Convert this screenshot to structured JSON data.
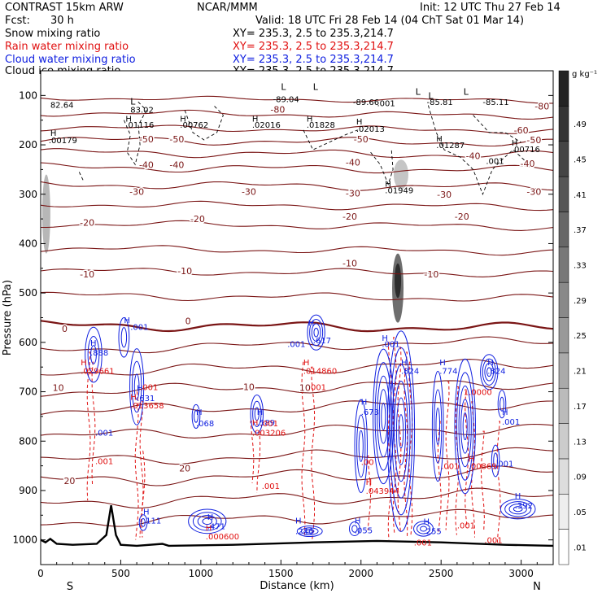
{
  "header": {
    "model": "CONTRAST 15km ARW",
    "center": "NCAR/MMM",
    "init": "Init: 12 UTC Thu 27 Feb 14",
    "fcst_label": "Fcst:",
    "fcst_value": "30 h",
    "valid": "Valid: 18 UTC Fri 28 Feb 14 (04 ChT Sat 01 Mar 14)"
  },
  "fields": [
    {
      "name": "Snow mixing ratio",
      "xy": "XY= 235.3,  2.5 to 235.3,214.7",
      "color": "#000000"
    },
    {
      "name": "Rain water mixing ratio",
      "xy": "XY= 235.3,  2.5 to 235.3,214.7",
      "color": "#e01010"
    },
    {
      "name": "Cloud water mixing ratio",
      "xy": "XY= 235.3,  2.5 to 235.3,214.7",
      "color": "#1020e0"
    },
    {
      "name": "Cloud ice mixing ratio",
      "xy": "XY= 235.3,  2.5 to 235.3,214.7",
      "color": "#000000"
    }
  ],
  "chart_data": {
    "type": "cross-section contour",
    "xlabel": "Distance (km)",
    "ylabel": "Pressure (hPa)",
    "xlim": [
      0,
      3200
    ],
    "ylim": [
      1050,
      50
    ],
    "x_ticks": [
      0,
      500,
      1000,
      1500,
      2000,
      2500,
      3000
    ],
    "y_ticks": [
      100,
      200,
      300,
      400,
      500,
      600,
      700,
      800,
      900,
      1000
    ],
    "x_end_labels": {
      "left": "S",
      "right": "N"
    },
    "colorbar": {
      "unit": "g kg⁻¹",
      "levels": [
        ".01",
        ".05",
        ".09",
        ".13",
        ".17",
        ".21",
        ".25",
        ".29",
        ".33",
        ".37",
        ".41",
        ".45",
        ".49"
      ]
    },
    "isotherm_labels": [
      {
        "x": 1480,
        "p": 128,
        "text": "-80"
      },
      {
        "x": 3130,
        "p": 122,
        "text": "-80"
      },
      {
        "x": 3000,
        "p": 170,
        "text": "-60"
      },
      {
        "x": 660,
        "p": 188,
        "text": "-50"
      },
      {
        "x": 850,
        "p": 188,
        "text": "-50"
      },
      {
        "x": 2000,
        "p": 188,
        "text": "-50"
      },
      {
        "x": 3080,
        "p": 190,
        "text": "-50"
      },
      {
        "x": 660,
        "p": 240,
        "text": "-40"
      },
      {
        "x": 850,
        "p": 240,
        "text": "-40"
      },
      {
        "x": 1950,
        "p": 235,
        "text": "-40"
      },
      {
        "x": 2700,
        "p": 222,
        "text": "-40"
      },
      {
        "x": 3040,
        "p": 238,
        "text": "-40"
      },
      {
        "x": 600,
        "p": 295,
        "text": "-30"
      },
      {
        "x": 1300,
        "p": 295,
        "text": "-30"
      },
      {
        "x": 1950,
        "p": 298,
        "text": "-30"
      },
      {
        "x": 2520,
        "p": 300,
        "text": "-30"
      },
      {
        "x": 3080,
        "p": 295,
        "text": "-30"
      },
      {
        "x": 290,
        "p": 357,
        "text": "-20"
      },
      {
        "x": 980,
        "p": 350,
        "text": "-20"
      },
      {
        "x": 1930,
        "p": 345,
        "text": "-20"
      },
      {
        "x": 2630,
        "p": 345,
        "text": "-20"
      },
      {
        "x": 290,
        "p": 462,
        "text": "-10"
      },
      {
        "x": 900,
        "p": 455,
        "text": "-10"
      },
      {
        "x": 1930,
        "p": 440,
        "text": "-10"
      },
      {
        "x": 2440,
        "p": 462,
        "text": "-10"
      },
      {
        "x": 150,
        "p": 572,
        "text": "0"
      },
      {
        "x": 920,
        "p": 557,
        "text": "0"
      },
      {
        "x": 110,
        "p": 692,
        "text": "10"
      },
      {
        "x": 1300,
        "p": 690,
        "text": "10"
      },
      {
        "x": 1650,
        "p": 692,
        "text": "10"
      },
      {
        "x": 180,
        "p": 880,
        "text": "20"
      },
      {
        "x": 900,
        "p": 855,
        "text": "20"
      }
    ],
    "snow_ice_labels": [
      {
        "x": 60,
        "p": 118,
        "text": "82.64"
      },
      {
        "x": 560,
        "p": 128,
        "text": "83.02"
      },
      {
        "x": 1450,
        "p": 107,
        "text": "-89.04"
      },
      {
        "x": 1950,
        "p": 113,
        "text": "-89.66"
      },
      {
        "x": 2100,
        "p": 115,
        "text": ".001"
      },
      {
        "x": 2410,
        "p": 113,
        "text": "-85.81"
      },
      {
        "x": 2760,
        "p": 113,
        "text": "-85.11"
      },
      {
        "x": 530,
        "p": 159,
        "text": ".01116"
      },
      {
        "x": 870,
        "p": 159,
        "text": ".00762"
      },
      {
        "x": 1320,
        "p": 159,
        "text": ".02016"
      },
      {
        "x": 1660,
        "p": 159,
        "text": ".01828"
      },
      {
        "x": 1970,
        "p": 167,
        "text": ".02013"
      },
      {
        "x": 50,
        "p": 190,
        "text": ".00179"
      },
      {
        "x": 2470,
        "p": 200,
        "text": ".01287"
      },
      {
        "x": 2780,
        "p": 232,
        "text": ".001"
      },
      {
        "x": 2940,
        "p": 208,
        "text": ".00716"
      },
      {
        "x": 2150,
        "p": 291,
        "text": ".01949"
      }
    ],
    "snow_ice_H": [
      {
        "x": 60,
        "p": 175
      },
      {
        "x": 530,
        "p": 146
      },
      {
        "x": 870,
        "p": 146
      },
      {
        "x": 1320,
        "p": 146
      },
      {
        "x": 1660,
        "p": 146
      },
      {
        "x": 1970,
        "p": 152
      },
      {
        "x": 2470,
        "p": 187
      },
      {
        "x": 2940,
        "p": 195
      },
      {
        "x": 2150,
        "p": 278
      }
    ],
    "snow_ice_L": [
      {
        "x": 1500,
        "p": 82
      },
      {
        "x": 1700,
        "p": 82
      },
      {
        "x": 2340,
        "p": 92
      },
      {
        "x": 2640,
        "p": 92
      },
      {
        "x": 560,
        "p": 112
      },
      {
        "x": 2420,
        "p": 100
      }
    ],
    "cloud_water_labels": [
      {
        "x": 310,
        "p": 620,
        "text": ".888"
      },
      {
        "x": 560,
        "p": 568,
        "text": ".001"
      },
      {
        "x": 600,
        "p": 712,
        "text": ".631"
      },
      {
        "x": 970,
        "p": 763,
        "text": ".068"
      },
      {
        "x": 1350,
        "p": 762,
        "text": ".589"
      },
      {
        "x": 1540,
        "p": 603,
        "text": ".001"
      },
      {
        "x": 1700,
        "p": 595,
        "text": ".617"
      },
      {
        "x": 2130,
        "p": 603,
        "text": ".001"
      },
      {
        "x": 2250,
        "p": 657,
        "text": ".824"
      },
      {
        "x": 2000,
        "p": 740,
        "text": ".673"
      },
      {
        "x": 2490,
        "p": 657,
        "text": ".774"
      },
      {
        "x": 2790,
        "p": 657,
        "text": ".824"
      },
      {
        "x": 2880,
        "p": 760,
        "text": ".001"
      },
      {
        "x": 2840,
        "p": 845,
        "text": ".001"
      },
      {
        "x": 340,
        "p": 782,
        "text": ".001"
      },
      {
        "x": 1040,
        "p": 972,
        "text": ".471"
      },
      {
        "x": 640,
        "p": 960,
        "text": ".111"
      },
      {
        "x": 1590,
        "p": 982,
        "text": ".246"
      },
      {
        "x": 1960,
        "p": 980,
        "text": ".055"
      },
      {
        "x": 2390,
        "p": 982,
        "text": ".255"
      },
      {
        "x": 2960,
        "p": 930,
        "text": ".392"
      }
    ],
    "cloud_water_H": [
      {
        "x": 310,
        "p": 600
      },
      {
        "x": 520,
        "p": 554
      },
      {
        "x": 600,
        "p": 692
      },
      {
        "x": 970,
        "p": 740
      },
      {
        "x": 1350,
        "p": 740
      },
      {
        "x": 1670,
        "p": 560
      },
      {
        "x": 2130,
        "p": 590
      },
      {
        "x": 2250,
        "p": 640
      },
      {
        "x": 2000,
        "p": 720
      },
      {
        "x": 2490,
        "p": 640
      },
      {
        "x": 2790,
        "p": 640
      },
      {
        "x": 2880,
        "p": 740
      },
      {
        "x": 1040,
        "p": 953
      },
      {
        "x": 640,
        "p": 942
      },
      {
        "x": 1590,
        "p": 960
      },
      {
        "x": 1960,
        "p": 960
      },
      {
        "x": 2390,
        "p": 962
      },
      {
        "x": 2960,
        "p": 910
      }
    ],
    "rain_labels": [
      {
        "x": 250,
        "p": 657,
        "text": ".029661"
      },
      {
        "x": 560,
        "p": 727,
        "text": ".013658"
      },
      {
        "x": 620,
        "p": 690,
        "text": ".001"
      },
      {
        "x": 1320,
        "p": 782,
        "text": ".003206"
      },
      {
        "x": 1640,
        "p": 657,
        "text": ".014860"
      },
      {
        "x": 1670,
        "p": 690,
        "text": ".001"
      },
      {
        "x": 1370,
        "p": 763,
        "text": ".001"
      },
      {
        "x": 2000,
        "p": 842,
        "text": ".00"
      },
      {
        "x": 2030,
        "p": 900,
        "text": ".043944"
      },
      {
        "x": 2500,
        "p": 850,
        "text": ".001"
      },
      {
        "x": 2670,
        "p": 850,
        "text": ".00869"
      },
      {
        "x": 2640,
        "p": 700,
        "text": "1.0000"
      },
      {
        "x": 340,
        "p": 840,
        "text": ".001"
      },
      {
        "x": 1380,
        "p": 890,
        "text": ".001"
      },
      {
        "x": 1030,
        "p": 992,
        "text": ".000600"
      },
      {
        "x": 2330,
        "p": 1005,
        "text": ".001"
      },
      {
        "x": 2600,
        "p": 970,
        "text": ".001"
      },
      {
        "x": 2770,
        "p": 1000,
        "text": ".001"
      }
    ],
    "rain_H": [
      {
        "x": 250,
        "p": 640
      },
      {
        "x": 560,
        "p": 710
      },
      {
        "x": 1320,
        "p": 762
      },
      {
        "x": 1640,
        "p": 640
      },
      {
        "x": 2030,
        "p": 882
      },
      {
        "x": 2670,
        "p": 835
      },
      {
        "x": 1030,
        "p": 975
      }
    ],
    "terrain": [
      [
        0,
        1000
      ],
      [
        30,
        1005
      ],
      [
        60,
        998
      ],
      [
        100,
        1008
      ],
      [
        200,
        1010
      ],
      [
        350,
        1008
      ],
      [
        410,
        990
      ],
      [
        440,
        930
      ],
      [
        470,
        990
      ],
      [
        500,
        1010
      ],
      [
        600,
        1012
      ],
      [
        760,
        1008
      ],
      [
        800,
        1012
      ],
      [
        1200,
        1010
      ],
      [
        1700,
        1005
      ],
      [
        2100,
        1002
      ],
      [
        2500,
        1005
      ],
      [
        2900,
        1010
      ],
      [
        3200,
        1012
      ]
    ]
  }
}
